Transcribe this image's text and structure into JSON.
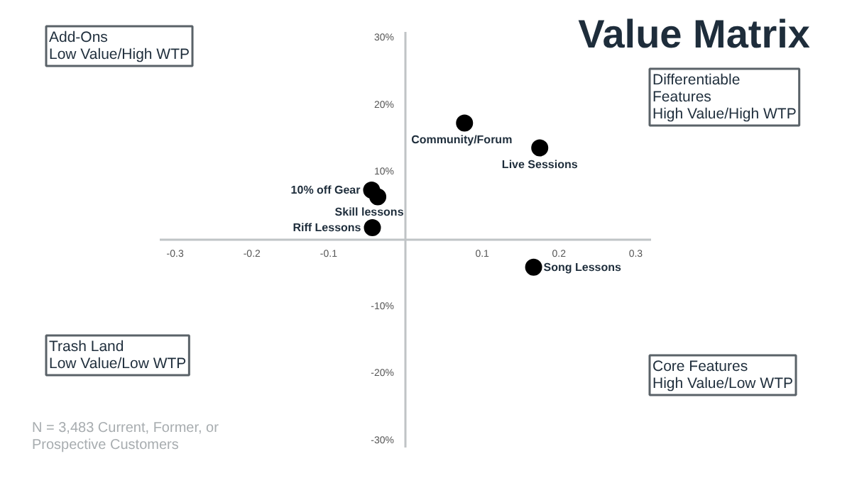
{
  "chart_data": {
    "type": "scatter",
    "title": "Value Matrix",
    "x": [
      0.077,
      0.175,
      -0.044,
      -0.036,
      -0.043,
      0.167
    ],
    "series": [
      {
        "color": "#000000",
        "values": [
          17.4,
          13.7,
          7.4,
          6.4,
          1.8,
          -4.1
        ]
      }
    ],
    "marker": "circle",
    "grid": false,
    "xlim": [
      -0.32,
      0.32
    ],
    "xticks": [
      -0.3,
      -0.2,
      -0.1,
      0.1,
      0.2,
      0.3
    ],
    "ylim": [
      -31,
      31
    ],
    "yticks": [
      {
        "value": 30,
        "label": "30%"
      },
      {
        "value": 20,
        "label": "20%"
      },
      {
        "value": 10,
        "label": "10%"
      },
      {
        "value": -10,
        "label": "-10%"
      },
      {
        "value": -20,
        "label": "-20%"
      },
      {
        "value": -30,
        "label": "-30%"
      }
    ],
    "annotations": [
      {
        "text": "Community/Forum",
        "x": 0.077,
        "y": 17.4
      },
      {
        "text": "Live Sessions",
        "x": 0.175,
        "y": 13.7
      },
      {
        "text": "10% off Gear",
        "x": -0.044,
        "y": 7.4
      },
      {
        "text": "Skill lessons",
        "x": -0.036,
        "y": 6.4
      },
      {
        "text": "Riff Lessons",
        "x": -0.043,
        "y": 1.8
      },
      {
        "text": "Song Lessons",
        "x": 0.167,
        "y": -4.1
      },
      "Add-Ons\nLow Value/High WTP",
      "Differentiable\nFeatures\nHigh Value/High WTP",
      "Trash Land\nLow Value/Low WTP",
      "Core Features\nHigh Value/Low WTP",
      "N = 3,483 Current, Former, or\nProspective Customers"
    ]
  }
}
